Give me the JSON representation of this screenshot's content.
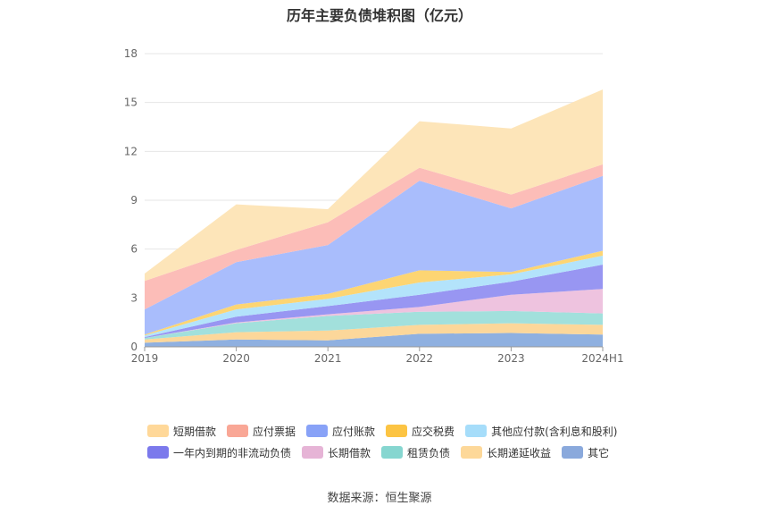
{
  "chart_data": {
    "type": "area",
    "stacked": true,
    "title": "历年主要负债堆积图（亿元）",
    "xlabel": "",
    "ylabel": "",
    "ylim": [
      0,
      18
    ],
    "yticks": [
      0,
      3,
      6,
      9,
      12,
      15,
      18
    ],
    "categories": [
      "2019",
      "2020",
      "2021",
      "2022",
      "2023",
      "2024H1"
    ],
    "grid": true,
    "legend_position": "bottom",
    "series": [
      {
        "name": "其它",
        "color": "#8fb0e0",
        "values": [
          0.25,
          0.45,
          0.4,
          0.8,
          0.85,
          0.75
        ]
      },
      {
        "name": "长期递延收益",
        "color": "#fcd79a",
        "values": [
          0.2,
          0.45,
          0.6,
          0.55,
          0.6,
          0.6
        ]
      },
      {
        "name": "租赁负债",
        "color": "#a2e0dc",
        "values": [
          0.1,
          0.55,
          0.9,
          0.8,
          0.75,
          0.7
        ]
      },
      {
        "name": "长期借款",
        "color": "#eec3df",
        "values": [
          0.0,
          0.05,
          0.1,
          0.3,
          1.0,
          1.5
        ]
      },
      {
        "name": "一年内到期的非流动负债",
        "color": "#9896f2",
        "values": [
          0.05,
          0.35,
          0.5,
          0.75,
          0.8,
          1.5
        ]
      },
      {
        "name": "其他应付款(含利息和股利)",
        "color": "#b3e3fb",
        "values": [
          0.1,
          0.45,
          0.45,
          0.75,
          0.45,
          0.55
        ]
      },
      {
        "name": "应交税费",
        "color": "#fdd573",
        "values": [
          0.05,
          0.3,
          0.3,
          0.75,
          0.15,
          0.3
        ]
      },
      {
        "name": "应付账款",
        "color": "#a9bdfc",
        "values": [
          1.55,
          2.6,
          3.0,
          5.5,
          3.9,
          4.6
        ]
      },
      {
        "name": "应付票据",
        "color": "#fcbdb8",
        "values": [
          1.75,
          0.75,
          1.4,
          0.8,
          0.85,
          0.7
        ]
      },
      {
        "name": "短期借款",
        "color": "#fde5b9",
        "values": [
          0.45,
          2.8,
          0.8,
          2.85,
          4.05,
          4.6
        ]
      }
    ]
  },
  "legend": {
    "row1": [
      {
        "label": "短期借款",
        "color": "#ffd899"
      },
      {
        "label": "应付票据",
        "color": "#f9a796"
      },
      {
        "label": "应付账款",
        "color": "#88a2f7"
      },
      {
        "label": "应交税费",
        "color": "#fcc443"
      },
      {
        "label": "其他应付款(含利息和股利)",
        "color": "#a6ddfa"
      }
    ],
    "row2": [
      {
        "label": "一年内到期的非流动负债",
        "color": "#7b79ec"
      },
      {
        "label": "长期借款",
        "color": "#e6b4d6"
      },
      {
        "label": "租赁负债",
        "color": "#86d6d0"
      },
      {
        "label": "长期递延收益",
        "color": "#fdd899"
      },
      {
        "label": "其它",
        "color": "#8aa9dc"
      }
    ]
  },
  "source_note": "数据来源：恒生聚源"
}
